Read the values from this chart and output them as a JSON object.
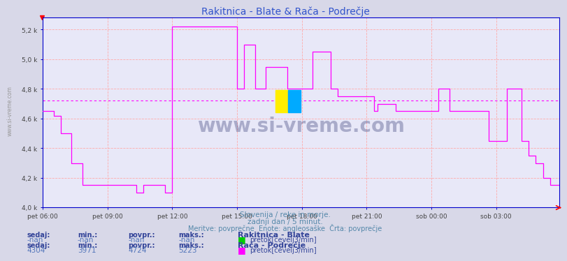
{
  "title": "Rakitnica - Blate & Rača - Podrečje",
  "title_color": "#3355cc",
  "bg_color": "#d8d8e8",
  "plot_bg_color": "#e8e8f8",
  "grid_color": "#ffaaaa",
  "axis_color": "#0000cc",
  "ylim": [
    4000,
    5280
  ],
  "yticks": [
    4000,
    4200,
    4400,
    4600,
    4800,
    5000,
    5200
  ],
  "ytick_labels": [
    "4,0 k",
    "4,2 k",
    "4,4 k",
    "4,6 k",
    "4,8 k",
    "5,0 k",
    "5,2 k"
  ],
  "xtick_labels": [
    "pet 06:00",
    "pet 09:00",
    "pet 12:00",
    "pet 15:00",
    "pet 18:00",
    "pet 21:00",
    "sob 00:00",
    "sob 03:00"
  ],
  "xtick_positions": [
    0,
    36,
    72,
    108,
    144,
    180,
    216,
    252
  ],
  "n_points": 288,
  "avg_line_value": 4724,
  "avg_line_color": "#ff00ff",
  "subtitle1": "Slovenija / reke in morje.",
  "subtitle2": "zadnji dan / 5 minut.",
  "subtitle3": "Meritve: povprečne  Enote: angleosaške  Črta: povprečje",
  "subtitle_color": "#5588aa",
  "watermark": "www.si-vreme.com",
  "watermark_color": "#1a2060",
  "legend1_title": "Rakitnica - Blate",
  "legend1_sedaj": "-nan",
  "legend1_min": "-nan",
  "legend1_povpr": "-nan",
  "legend1_maks": "-nan",
  "legend1_color": "#00cc00",
  "legend2_title": "Rača - Podrečje",
  "legend2_sedaj": "4304",
  "legend2_min": "3971",
  "legend2_povpr": "4724",
  "legend2_maks": "5223",
  "legend2_color": "#ff00ff",
  "line2_color": "#ff00ff",
  "label_color": "#334499",
  "value_color": "#5577bb",
  "sidebar_text": "www.si-vreme.com"
}
